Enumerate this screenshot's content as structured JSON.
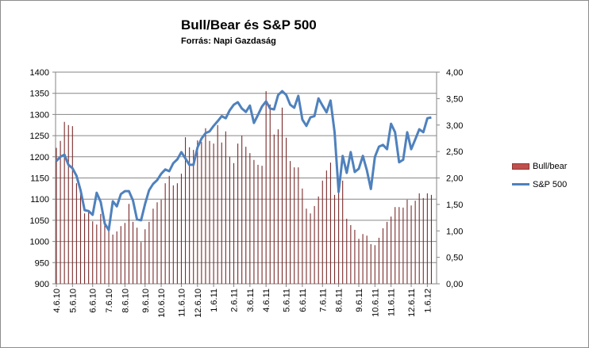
{
  "chart_data": {
    "type": "bar+line",
    "title": "Bull/Bear és S&P 500",
    "subtitle": "Forrás: Napi Gazdaság",
    "left_axis": {
      "ylim": [
        900,
        1400
      ],
      "ticks": [
        "900",
        "950",
        "1000",
        "1050",
        "1100",
        "1150",
        "1200",
        "1250",
        "1300",
        "1350",
        "1400"
      ]
    },
    "right_axis": {
      "ylim": [
        0,
        4
      ],
      "ticks": [
        "0,00",
        "0,50",
        "1,00",
        "1,50",
        "2,00",
        "2,50",
        "3,00",
        "3,50",
        "4,00"
      ]
    },
    "x_tick_labels": [
      "4.6.10",
      "5.6.10",
      "6.6.10",
      "7.6.10",
      "8.6.10",
      "9.6.10",
      "10.6.10",
      "11.6.10",
      "12.6.10",
      "1.6.11",
      "2.6.11",
      "3.6.11",
      "4.6.11",
      "5.6.11",
      "6.6.11",
      "7.6.11",
      "8.6.11",
      "9.6.11",
      "10.6.11",
      "11.6.11",
      "12.6.11",
      "1.6.12"
    ],
    "x_tick_index": [
      0,
      4,
      9,
      13,
      17,
      22,
      26,
      31,
      35,
      39,
      44,
      48,
      52,
      57,
      61,
      66,
      70,
      75,
      79,
      83,
      88,
      92
    ],
    "legend_position": "right",
    "series": [
      {
        "name": "Bull/bear",
        "type": "bar",
        "axis": "right",
        "color": "#c0504d",
        "values": [
          2.57,
          2.7,
          3.06,
          3.0,
          2.98,
          1.9,
          1.75,
          1.33,
          1.39,
          1.18,
          1.12,
          1.32,
          1.12,
          1.05,
          0.93,
          0.99,
          1.09,
          1.15,
          1.51,
          1.17,
          1.06,
          0.79,
          1.03,
          1.17,
          1.42,
          1.54,
          1.59,
          1.9,
          2.04,
          1.86,
          1.9,
          2.08,
          2.77,
          2.58,
          2.53,
          2.71,
          2.68,
          2.94,
          2.7,
          2.65,
          3.0,
          2.67,
          2.88,
          2.4,
          2.28,
          2.65,
          2.8,
          2.59,
          2.47,
          2.34,
          2.25,
          2.23,
          3.64,
          3.39,
          2.82,
          2.92,
          3.33,
          2.76,
          2.32,
          2.2,
          2.2,
          1.8,
          1.42,
          1.33,
          1.47,
          1.65,
          1.95,
          2.14,
          2.29,
          1.68,
          1.72,
          1.95,
          1.23,
          1.11,
          1.02,
          0.85,
          0.94,
          0.91,
          0.75,
          0.73,
          0.87,
          1.05,
          1.17,
          1.27,
          1.45,
          1.45,
          1.44,
          1.59,
          1.48,
          1.57,
          1.71,
          1.62,
          1.71,
          1.68
        ]
      },
      {
        "name": "S&P 500",
        "type": "line",
        "axis": "left",
        "color": "#4f81bd",
        "values": [
          1190,
          1200,
          1205,
          1181,
          1173,
          1155,
          1121,
          1074,
          1072,
          1063,
          1115,
          1093,
          1042,
          1027,
          1095,
          1083,
          1112,
          1119,
          1119,
          1097,
          1052,
          1050,
          1089,
          1121,
          1136,
          1145,
          1160,
          1170,
          1166,
          1185,
          1194,
          1211,
          1196,
          1181,
          1181,
          1222,
          1243,
          1256,
          1260,
          1273,
          1284,
          1296,
          1291,
          1310,
          1323,
          1329,
          1314,
          1306,
          1321,
          1280,
          1299,
          1319,
          1331,
          1314,
          1312,
          1346,
          1355,
          1346,
          1323,
          1316,
          1344,
          1288,
          1273,
          1293,
          1296,
          1338,
          1321,
          1305,
          1333,
          1258,
          1117,
          1202,
          1162,
          1211,
          1164,
          1172,
          1202,
          1168,
          1124,
          1200,
          1224,
          1228,
          1218,
          1278,
          1258,
          1187,
          1193,
          1258,
          1218,
          1241,
          1265,
          1258,
          1291,
          1293
        ]
      }
    ]
  }
}
